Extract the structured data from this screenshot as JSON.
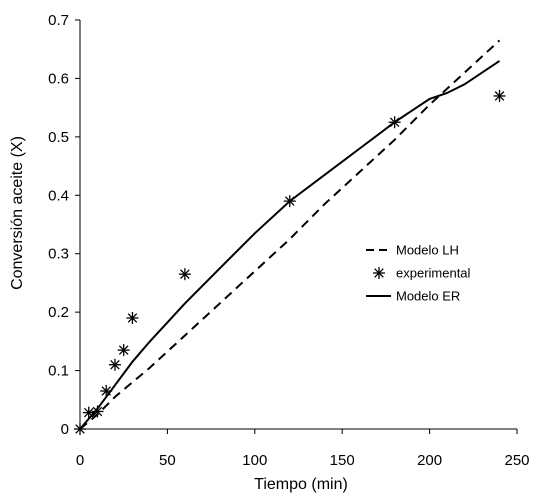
{
  "chart_data": {
    "type": "line",
    "xlabel": "Tiempo (min)",
    "ylabel": "Conversión aceite (X)",
    "xlim": [
      0,
      250
    ],
    "ylim": [
      0,
      0.7
    ],
    "xticks": [
      0,
      50,
      100,
      150,
      200,
      250
    ],
    "yticks": [
      0,
      0.1,
      0.2,
      0.3,
      0.4,
      0.5,
      0.6,
      0.7
    ],
    "xtick_labels": [
      "0",
      "50",
      "100",
      "150",
      "200",
      "250"
    ],
    "ytick_labels": [
      "0",
      "0.1",
      "0.2",
      "0.3",
      "0.4",
      "0.5",
      "0.6",
      "0.7"
    ],
    "grid": false,
    "legend_position": "right",
    "series": [
      {
        "name": "Modelo LH",
        "style": "dashed",
        "color": "#000000",
        "x": [
          0,
          10,
          20,
          30,
          40,
          60,
          80,
          100,
          120,
          140,
          160,
          180,
          200,
          220,
          240
        ],
        "y": [
          0,
          0.025,
          0.055,
          0.08,
          0.105,
          0.16,
          0.215,
          0.27,
          0.325,
          0.385,
          0.44,
          0.495,
          0.555,
          0.61,
          0.665
        ]
      },
      {
        "name": "experimental",
        "style": "markers",
        "marker": "asterisk",
        "color": "#000000",
        "x": [
          0,
          5,
          10,
          15,
          20,
          25,
          30,
          60,
          120,
          180,
          240
        ],
        "y": [
          0,
          0.028,
          0.03,
          0.065,
          0.11,
          0.135,
          0.19,
          0.265,
          0.39,
          0.525,
          0.57
        ]
      },
      {
        "name": "Modelo ER",
        "style": "solid",
        "color": "#000000",
        "x": [
          0,
          10,
          20,
          30,
          40,
          60,
          80,
          100,
          120,
          140,
          160,
          180,
          200,
          210,
          220,
          240
        ],
        "y": [
          0,
          0.035,
          0.075,
          0.115,
          0.15,
          0.215,
          0.275,
          0.335,
          0.39,
          0.435,
          0.48,
          0.525,
          0.565,
          0.575,
          0.59,
          0.63
        ]
      }
    ]
  }
}
